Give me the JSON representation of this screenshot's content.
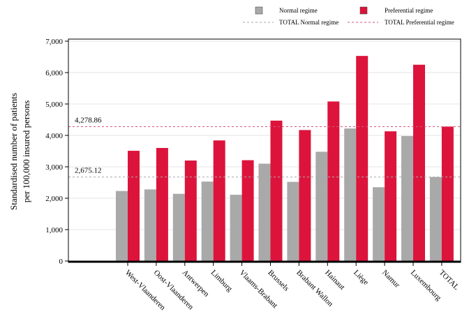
{
  "chart_data": {
    "type": "bar",
    "title": "",
    "xlabel": "",
    "ylabel_line1": "Standardised number of patients",
    "ylabel_line2": "per 100,000 insured persons",
    "ylim": [
      0,
      7000
    ],
    "yticks": [
      "0",
      "1,000",
      "2,000",
      "3,000",
      "4,000",
      "5,000",
      "6,000",
      "7,000"
    ],
    "ytick_values": [
      0,
      1000,
      2000,
      3000,
      4000,
      5000,
      6000,
      7000
    ],
    "grid": true,
    "legend_position": "top",
    "categories": [
      "West-Vlaanderen",
      "Oost-Vlaanderen",
      "Antwerpen",
      "Limburg",
      "Vlaams-Brabant",
      "Brussels",
      "Brabant Wallon",
      "Hainaut",
      "Liège",
      "Namur",
      "Luxembourg",
      "TOTAL"
    ],
    "series": [
      {
        "name": "Normal regime",
        "color": "#a9a9a9",
        "values": [
          2230,
          2280,
          2140,
          2530,
          2110,
          3100,
          2520,
          3480,
          4220,
          2350,
          3980,
          2675
        ]
      },
      {
        "name": "Preferential regime",
        "color": "#dc143c",
        "values": [
          3510,
          3600,
          3200,
          3840,
          3210,
          4470,
          4170,
          5080,
          6530,
          4130,
          6250,
          4279
        ]
      }
    ],
    "reference_lines": [
      {
        "name": "TOTAL Normal regime",
        "value": 2675.12,
        "label": "2,675.12",
        "color": "#a9a9a9"
      },
      {
        "name": "TOTAL Preferential regime",
        "value": 4278.86,
        "label": "4,278.86",
        "color": "#d4577a"
      }
    ]
  }
}
